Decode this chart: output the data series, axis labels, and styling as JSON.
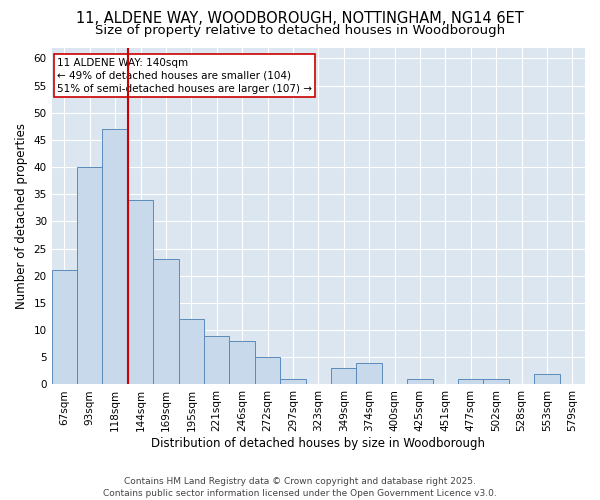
{
  "title_line1": "11, ALDENE WAY, WOODBOROUGH, NOTTINGHAM, NG14 6ET",
  "title_line2": "Size of property relative to detached houses in Woodborough",
  "xlabel": "Distribution of detached houses by size in Woodborough",
  "ylabel": "Number of detached properties",
  "categories": [
    "67sqm",
    "93sqm",
    "118sqm",
    "144sqm",
    "169sqm",
    "195sqm",
    "221sqm",
    "246sqm",
    "272sqm",
    "297sqm",
    "323sqm",
    "349sqm",
    "374sqm",
    "400sqm",
    "425sqm",
    "451sqm",
    "477sqm",
    "502sqm",
    "528sqm",
    "553sqm",
    "579sqm"
  ],
  "values": [
    21,
    40,
    47,
    34,
    23,
    12,
    9,
    8,
    5,
    1,
    0,
    3,
    4,
    0,
    1,
    0,
    1,
    1,
    0,
    2,
    0
  ],
  "bar_color": "#c9d9ec",
  "bar_edge_color": "#5b8aba",
  "vline_x": 2.5,
  "vline_color": "#cc0000",
  "annotation_text": "11 ALDENE WAY: 140sqm\n← 49% of detached houses are smaller (104)\n51% of semi-detached houses are larger (107) →",
  "annotation_box_facecolor": "#ffffff",
  "annotation_box_edgecolor": "#cc0000",
  "ylim": [
    0,
    62
  ],
  "yticks": [
    0,
    5,
    10,
    15,
    20,
    25,
    30,
    35,
    40,
    45,
    50,
    55,
    60
  ],
  "figure_bg": "#ffffff",
  "plot_bg": "#dce6f0",
  "grid_color": "#ffffff",
  "footer_text": "Contains HM Land Registry data © Crown copyright and database right 2025.\nContains public sector information licensed under the Open Government Licence v3.0.",
  "title_fontsize": 10.5,
  "subtitle_fontsize": 9.5,
  "axis_label_fontsize": 8.5,
  "tick_fontsize": 7.5,
  "annotation_fontsize": 7.5,
  "footer_fontsize": 6.5
}
